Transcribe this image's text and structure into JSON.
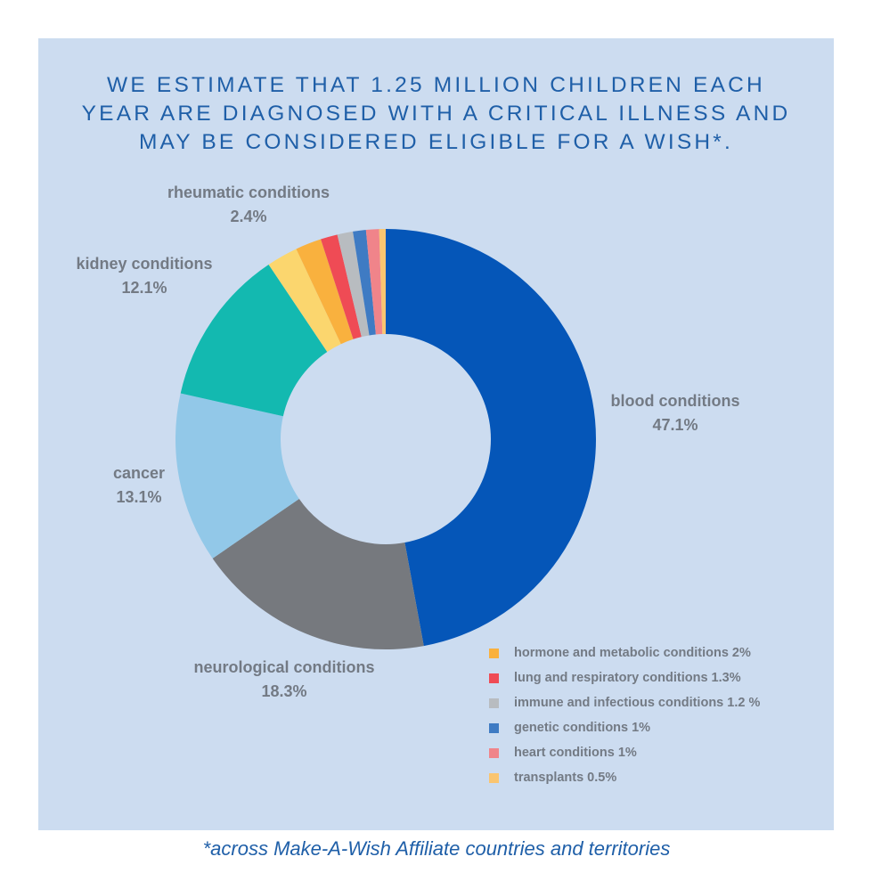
{
  "title_lines": [
    "WE ESTIMATE THAT 1.25 MILLION CHILDREN EACH",
    "YEAR ARE DIAGNOSED WITH A CRITICAL ILLNESS AND",
    "MAY BE CONSIDERED ELIGIBLE FOR A WISH*."
  ],
  "footnote": "*across Make-A-Wish Affiliate countries and territories",
  "colors": {
    "background": "#ccdcf0",
    "title": "#1f5fa8",
    "label": "#737a84"
  },
  "chart_data": {
    "type": "pie",
    "variant": "donut",
    "title": "WE ESTIMATE THAT 1.25 MILLION CHILDREN EACH YEAR ARE DIAGNOSED WITH A CRITICAL ILLNESS AND MAY BE CONSIDERED ELIGIBLE FOR A WISH*.",
    "start": "top",
    "direction": "clockwise",
    "slices": [
      {
        "name": "blood conditions",
        "value": 47.1,
        "display": "47.1%",
        "color": "#0556b8",
        "labeled": true
      },
      {
        "name": "neurological conditions",
        "value": 18.3,
        "display": "18.3%",
        "color": "#76797e",
        "labeled": true
      },
      {
        "name": "cancer",
        "value": 13.1,
        "display": "13.1%",
        "color": "#92c8e8",
        "labeled": true
      },
      {
        "name": "kidney conditions",
        "value": 12.1,
        "display": "12.1%",
        "color": "#13b9b0",
        "labeled": true
      },
      {
        "name": "rheumatic conditions",
        "value": 2.4,
        "display": "2.4%",
        "color": "#fbd66e",
        "labeled": true
      },
      {
        "name": "hormone and metabolic conditions",
        "value": 2,
        "display": "2%",
        "color": "#f9b13e",
        "labeled": false
      },
      {
        "name": "lung and respiratory conditions",
        "value": 1.3,
        "display": "1.3%",
        "color": "#ef4b55",
        "labeled": false
      },
      {
        "name": "immune and infectious conditions",
        "value": 1.2,
        "display": "1.2 %",
        "color": "#b8bcc0",
        "labeled": false
      },
      {
        "name": "genetic conditions",
        "value": 1,
        "display": "1%",
        "color": "#3f7bc3",
        "labeled": false
      },
      {
        "name": "heart conditions",
        "value": 1,
        "display": "1%",
        "color": "#f0848a",
        "labeled": false
      },
      {
        "name": "transplants",
        "value": 0.5,
        "display": "0.5%",
        "color": "#fac570",
        "labeled": false
      }
    ],
    "legend": {
      "placement": "bottom-right",
      "entries": [
        {
          "label": "hormone and metabolic conditions 2%",
          "color": "#f9b13e"
        },
        {
          "label": "lung and respiratory conditions 1.3%",
          "color": "#ef4b55"
        },
        {
          "label": "immune and infectious conditions 1.2 %",
          "color": "#b8bcc0"
        },
        {
          "label": "genetic conditions 1%",
          "color": "#3f7bc3"
        },
        {
          "label": "heart conditions 1%",
          "color": "#f0848a"
        },
        {
          "label": "transplants 0.5%",
          "color": "#fac570"
        }
      ]
    }
  }
}
